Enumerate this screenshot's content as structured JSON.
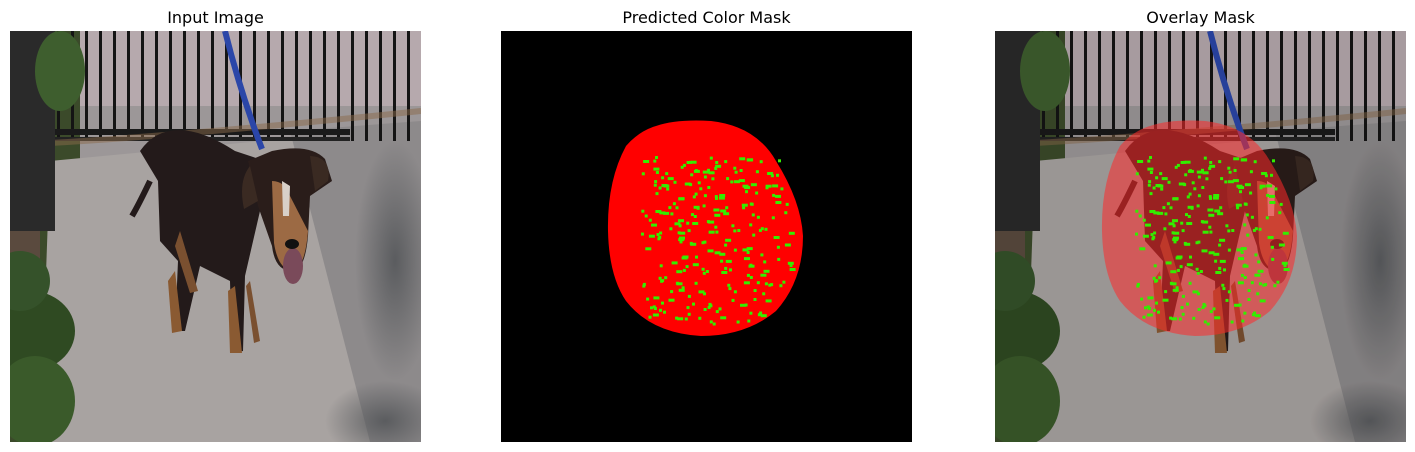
{
  "panels": [
    {
      "title": "Input Image",
      "content": "photo"
    },
    {
      "title": "Predicted Color Mask",
      "content": "mask"
    },
    {
      "title": "Overlay Mask",
      "content": "overlay"
    }
  ],
  "colors": {
    "mask_background": "#000000",
    "mask_primary": "#ff0000",
    "mask_secondary": "#33ee00",
    "overlay_tint": "#ff3b30"
  }
}
